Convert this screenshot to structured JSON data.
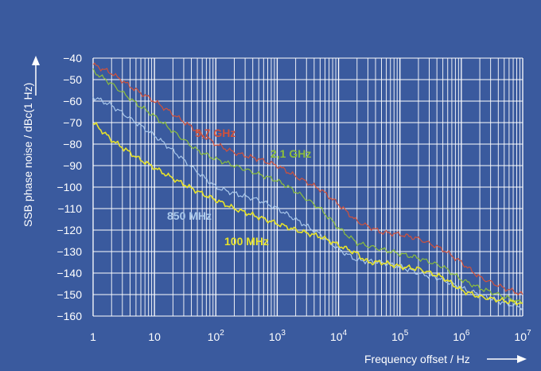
{
  "chart_data": {
    "type": "line",
    "xscale": "log",
    "xlim": [
      1,
      10000000
    ],
    "ylim": [
      -160,
      -40
    ],
    "xlabel": "Frequency offset / Hz",
    "ylabel": "SSB phase noise / dBc(1 Hz)",
    "x_ticks": [
      {
        "base": "1",
        "exp": ""
      },
      {
        "base": "10",
        "exp": ""
      },
      {
        "base": "10",
        "exp": "2"
      },
      {
        "base": "10",
        "exp": "3"
      },
      {
        "base": "10",
        "exp": "4"
      },
      {
        "base": "10",
        "exp": "5"
      },
      {
        "base": "10",
        "exp": "6"
      },
      {
        "base": "10",
        "exp": "7"
      }
    ],
    "y_ticks": [
      "−40",
      "−50",
      "−60",
      "−70",
      "−80",
      "−90",
      "−100",
      "−110",
      "−120",
      "−130",
      "−140",
      "−150",
      "−160"
    ],
    "grid": true,
    "series": [
      {
        "name": "5,7 GHz",
        "color": "#d2513a",
        "x": [
          1,
          2,
          5,
          10,
          20,
          50,
          100,
          200,
          500,
          1000,
          2000,
          5000,
          10000,
          20000,
          50000,
          100000,
          200000,
          500000,
          1000000,
          2000000,
          5000000,
          10000000
        ],
        "values": [
          -43,
          -47,
          -55,
          -60,
          -66,
          -74,
          -80,
          -84,
          -87,
          -90,
          -95,
          -101,
          -108,
          -116,
          -121,
          -122,
          -124,
          -129,
          -135,
          -142,
          -147,
          -150
        ]
      },
      {
        "name": "2,1 GHz",
        "color": "#8dbf3a",
        "x": [
          1,
          2,
          5,
          10,
          20,
          50,
          100,
          200,
          500,
          1000,
          2000,
          5000,
          10000,
          20000,
          50000,
          100000,
          200000,
          500000,
          1000000,
          2000000,
          5000000,
          10000000
        ],
        "values": [
          -46,
          -52,
          -61,
          -67,
          -74,
          -83,
          -87,
          -90,
          -94,
          -97,
          -102,
          -110,
          -119,
          -126,
          -129,
          -131,
          -133,
          -137,
          -143,
          -147,
          -151,
          -154
        ]
      },
      {
        "name": "850 MHz",
        "color": "#a9c8ec",
        "x": [
          1,
          2,
          5,
          10,
          20,
          50,
          100,
          200,
          500,
          1000,
          2000,
          5000,
          10000,
          20000,
          50000,
          100000,
          200000,
          500000,
          1000000,
          2000000,
          5000000,
          10000000
        ],
        "values": [
          -58,
          -62,
          -70,
          -76,
          -83,
          -93,
          -100,
          -103,
          -106,
          -110,
          -115,
          -122,
          -129,
          -134,
          -135,
          -137,
          -140,
          -143,
          -147,
          -150,
          -154,
          -156
        ]
      },
      {
        "name": "100 MHz",
        "color": "#e8e32a",
        "x": [
          1,
          2,
          5,
          10,
          20,
          50,
          100,
          200,
          500,
          1000,
          2000,
          5000,
          10000,
          20000,
          30000,
          50000,
          100000,
          200000,
          500000,
          1000000,
          2000000,
          5000000,
          10000000
        ],
        "values": [
          -70,
          -78,
          -86,
          -91,
          -96,
          -102,
          -106,
          -110,
          -114,
          -117,
          -120,
          -123,
          -127,
          -131,
          -135,
          -135,
          -137,
          -138,
          -142,
          -148,
          -151,
          -153,
          -154
        ]
      }
    ]
  },
  "labels": {
    "s57": "5,7 GHz",
    "s21": "2,1 GHz",
    "s850": "850 MHz",
    "s100": "100 MHz"
  },
  "colors": {
    "background": "#3a5a9e",
    "grid": "#ffffff"
  }
}
